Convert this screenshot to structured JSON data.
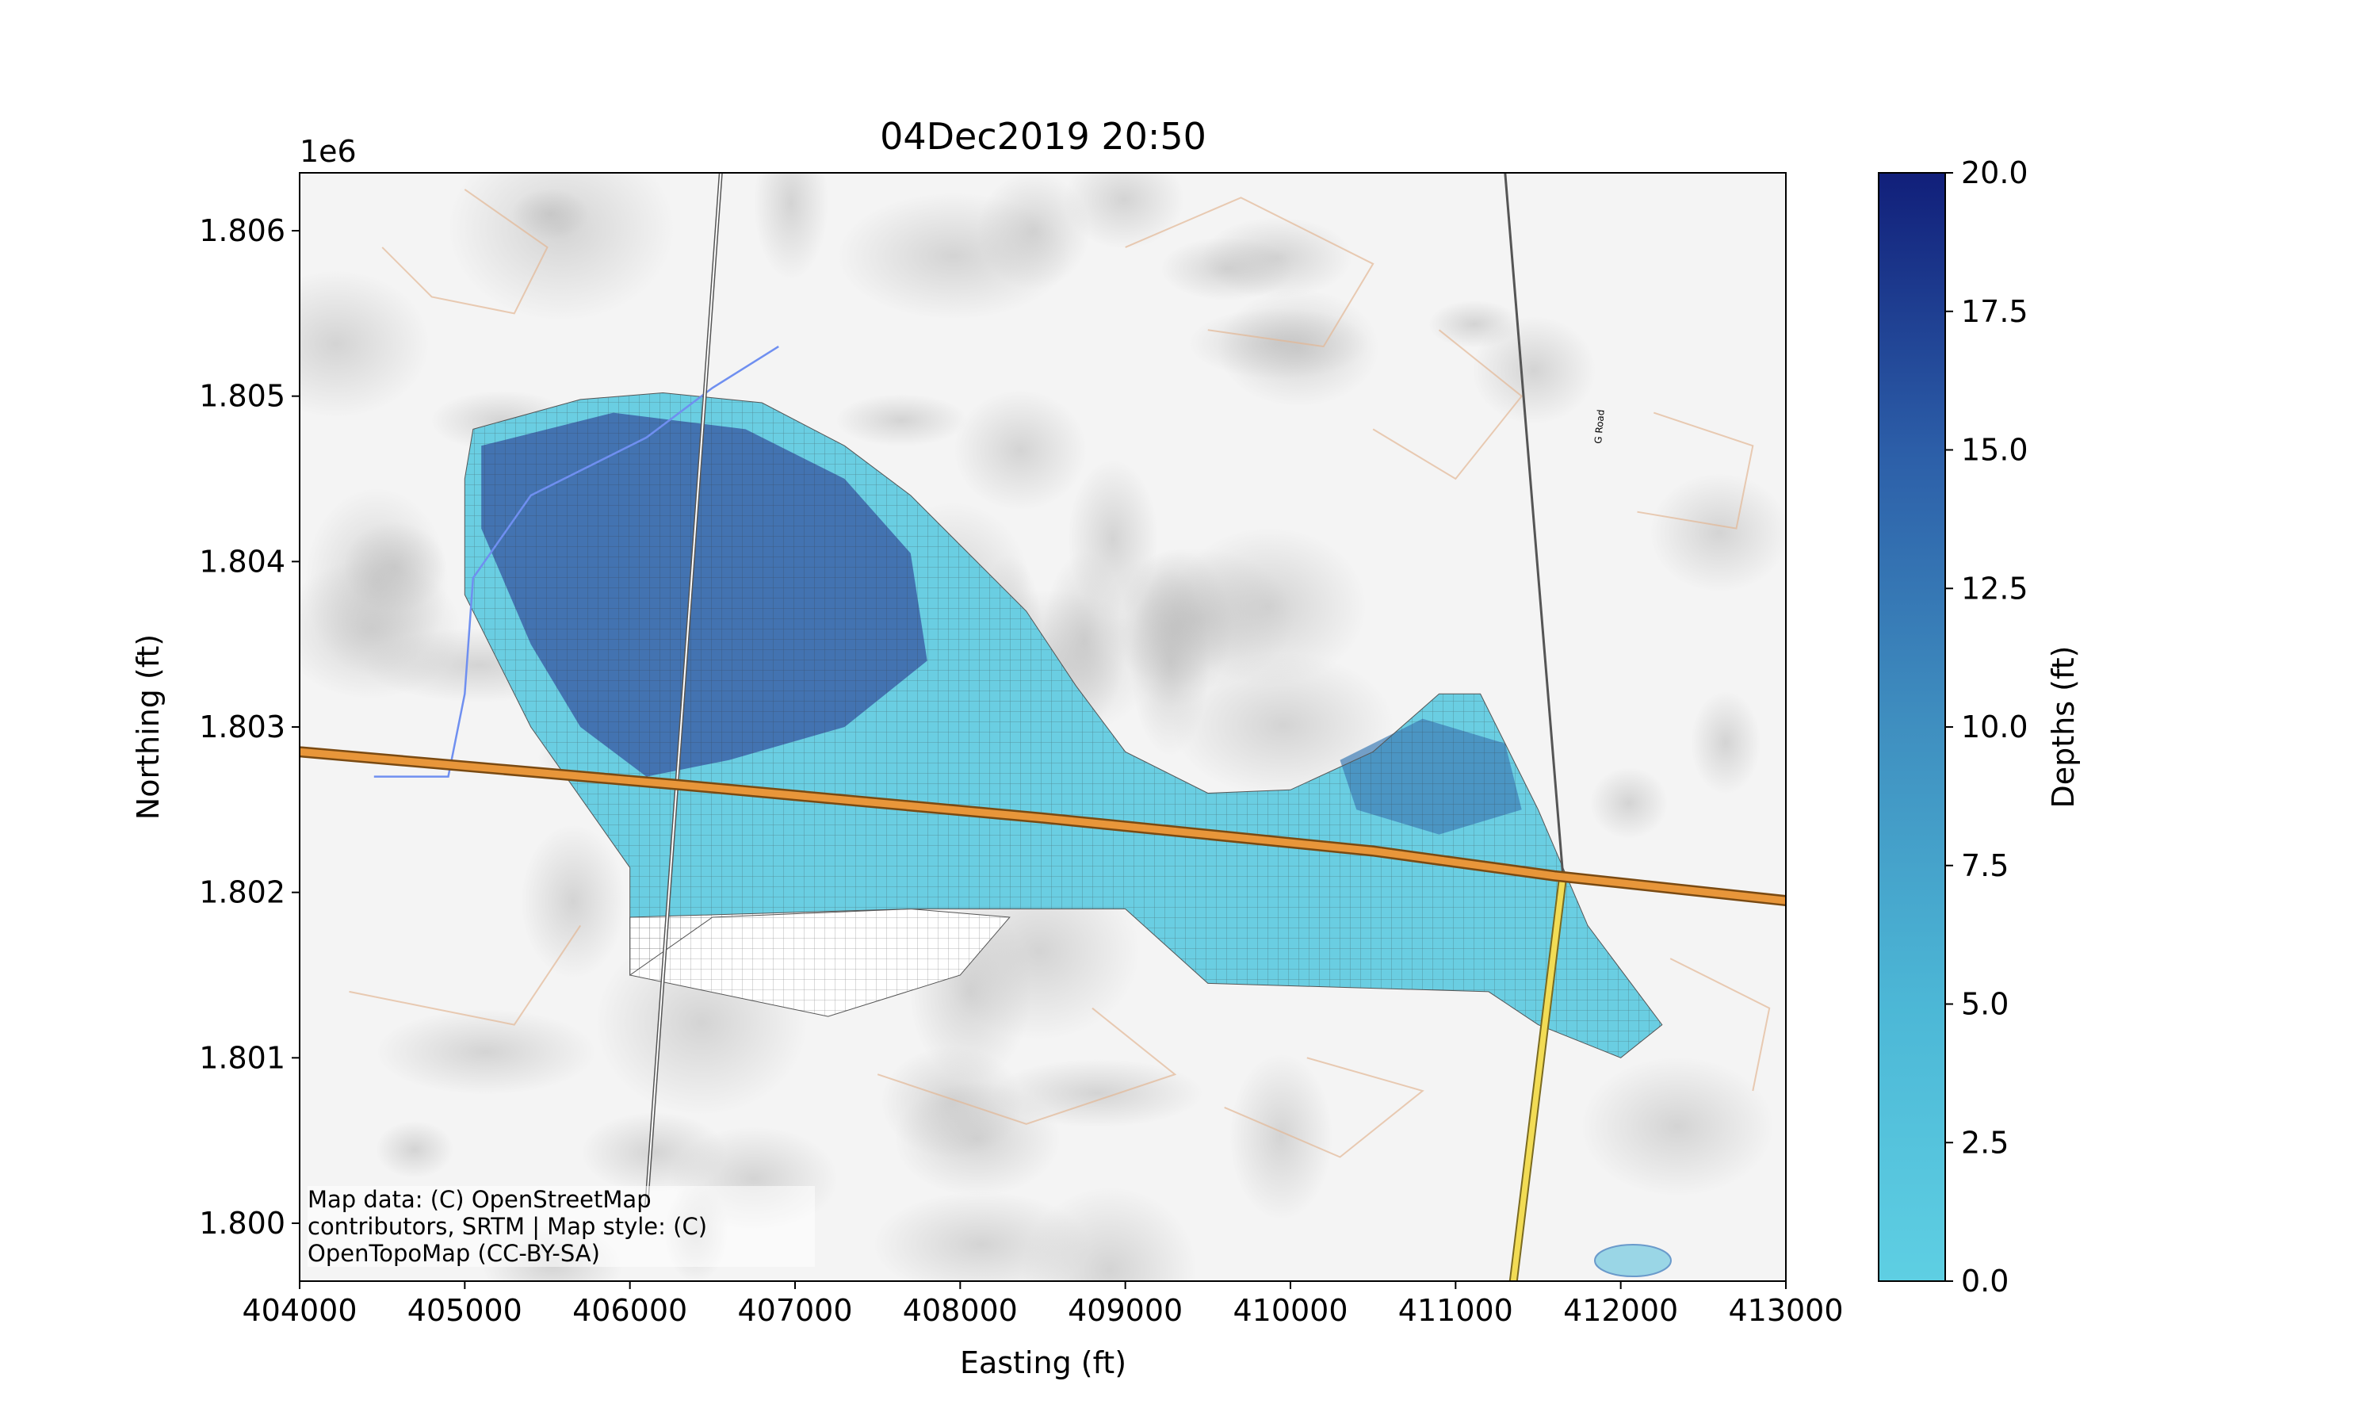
{
  "title": "04Dec2019 20:50",
  "chart_data": {
    "type": "heatmap",
    "title": "04Dec2019 20:50",
    "xlabel": "Easting (ft)",
    "ylabel": "Northing (ft)",
    "xlim": [
      404000,
      413000
    ],
    "ylim": [
      1799650,
      1806350
    ],
    "x_ticks": [
      "404000",
      "405000",
      "406000",
      "407000",
      "408000",
      "409000",
      "410000",
      "411000",
      "412000",
      "413000"
    ],
    "y_ticks": [
      "1.800",
      "1.801",
      "1.802",
      "1.803",
      "1.804",
      "1.805",
      "1.806"
    ],
    "y_offset_label": "1e6",
    "colorbar": {
      "label": "Depths (ft)",
      "range": [
        0,
        20
      ],
      "ticks": [
        "0.0",
        "2.5",
        "5.0",
        "7.5",
        "10.0",
        "12.5",
        "15.0",
        "17.5",
        "20.0"
      ],
      "color_low": "#5ecfe3",
      "color_high": "#111f7a"
    },
    "flood_extent": [
      [
        405050,
        1804800
      ],
      [
        405700,
        1804980
      ],
      [
        406200,
        1805020
      ],
      [
        406800,
        1804960
      ],
      [
        407300,
        1804700
      ],
      [
        407700,
        1804400
      ],
      [
        408000,
        1804100
      ],
      [
        408400,
        1803700
      ],
      [
        408700,
        1803250
      ],
      [
        409000,
        1802850
      ],
      [
        409500,
        1802600
      ],
      [
        410000,
        1802620
      ],
      [
        410500,
        1802850
      ],
      [
        410900,
        1803200
      ],
      [
        411150,
        1803200
      ],
      [
        411500,
        1802500
      ],
      [
        411800,
        1801800
      ],
      [
        412250,
        1801200
      ],
      [
        412000,
        1801000
      ],
      [
        411500,
        1801200
      ],
      [
        411200,
        1801400
      ],
      [
        409500,
        1801450
      ],
      [
        409000,
        1801900
      ],
      [
        408300,
        1801900
      ],
      [
        407700,
        1801900
      ],
      [
        406500,
        1801850
      ],
      [
        406000,
        1801500
      ],
      [
        406000,
        1802150
      ],
      [
        405400,
        1803000
      ],
      [
        405000,
        1803800
      ],
      [
        405000,
        1804500
      ]
    ],
    "deep_zone": [
      [
        405100,
        1804700
      ],
      [
        405900,
        1804900
      ],
      [
        406700,
        1804800
      ],
      [
        407300,
        1804500
      ],
      [
        407700,
        1804050
      ],
      [
        407800,
        1803400
      ],
      [
        407300,
        1803000
      ],
      [
        406600,
        1802800
      ],
      [
        406100,
        1802700
      ],
      [
        405700,
        1803000
      ],
      [
        405400,
        1803500
      ],
      [
        405100,
        1804200
      ]
    ],
    "secondary_deep_zone": [
      [
        410300,
        1802800
      ],
      [
        410800,
        1803050
      ],
      [
        411300,
        1802900
      ],
      [
        411400,
        1802500
      ],
      [
        410900,
        1802350
      ],
      [
        410400,
        1802500
      ]
    ],
    "highway": [
      [
        404000,
        1802850
      ],
      [
        406300,
        1802650
      ],
      [
        408500,
        1802450
      ],
      [
        410500,
        1802250
      ],
      [
        411600,
        1802100
      ],
      [
        413000,
        1801950
      ]
    ],
    "north_road_west": [
      [
        406550,
        1806350
      ],
      [
        406100,
        1800100
      ]
    ],
    "north_road_east": [
      [
        411300,
        1806350
      ],
      [
        411650,
        1802100
      ]
    ],
    "highway_south": [
      [
        411650,
        1802100
      ],
      [
        411350,
        1799650
      ]
    ],
    "stream": [
      [
        404450,
        1802700
      ],
      [
        404900,
        1802700
      ],
      [
        405000,
        1803200
      ],
      [
        405050,
        1803900
      ],
      [
        405400,
        1804400
      ],
      [
        406100,
        1804750
      ],
      [
        406500,
        1805050
      ],
      [
        406900,
        1805300
      ]
    ],
    "contour_lines": [
      [
        [
          405000,
          1806250
        ],
        [
          405500,
          1805900
        ],
        [
          405300,
          1805500
        ],
        [
          404800,
          1805600
        ],
        [
          404500,
          1805900
        ]
      ],
      [
        [
          409000,
          1805900
        ],
        [
          409700,
          1806200
        ],
        [
          410500,
          1805800
        ],
        [
          410200,
          1805300
        ],
        [
          409500,
          1805400
        ]
      ],
      [
        [
          410900,
          1805400
        ],
        [
          411400,
          1805000
        ],
        [
          411000,
          1804500
        ],
        [
          410500,
          1804800
        ]
      ],
      [
        [
          412200,
          1804900
        ],
        [
          412800,
          1804700
        ],
        [
          412700,
          1804200
        ],
        [
          412100,
          1804300
        ]
      ],
      [
        [
          404300,
          1801400
        ],
        [
          405300,
          1801200
        ],
        [
          405700,
          1801800
        ]
      ],
      [
        [
          407500,
          1800900
        ],
        [
          408400,
          1800600
        ],
        [
          409300,
          1800900
        ],
        [
          408800,
          1801300
        ]
      ],
      [
        [
          409600,
          1800700
        ],
        [
          410300,
          1800400
        ],
        [
          410800,
          1800800
        ],
        [
          410100,
          1801000
        ]
      ],
      [
        [
          412300,
          1801600
        ],
        [
          412900,
          1801300
        ],
        [
          412800,
          1800800
        ]
      ]
    ]
  },
  "attribution": {
    "line1": "Map data: (C) OpenStreetMap",
    "line2": "contributors, SRTM | Map style: (C)",
    "line3": "OpenTopoMap (CC-BY-SA)"
  },
  "map_labels": {
    "road_label": "G Road"
  }
}
